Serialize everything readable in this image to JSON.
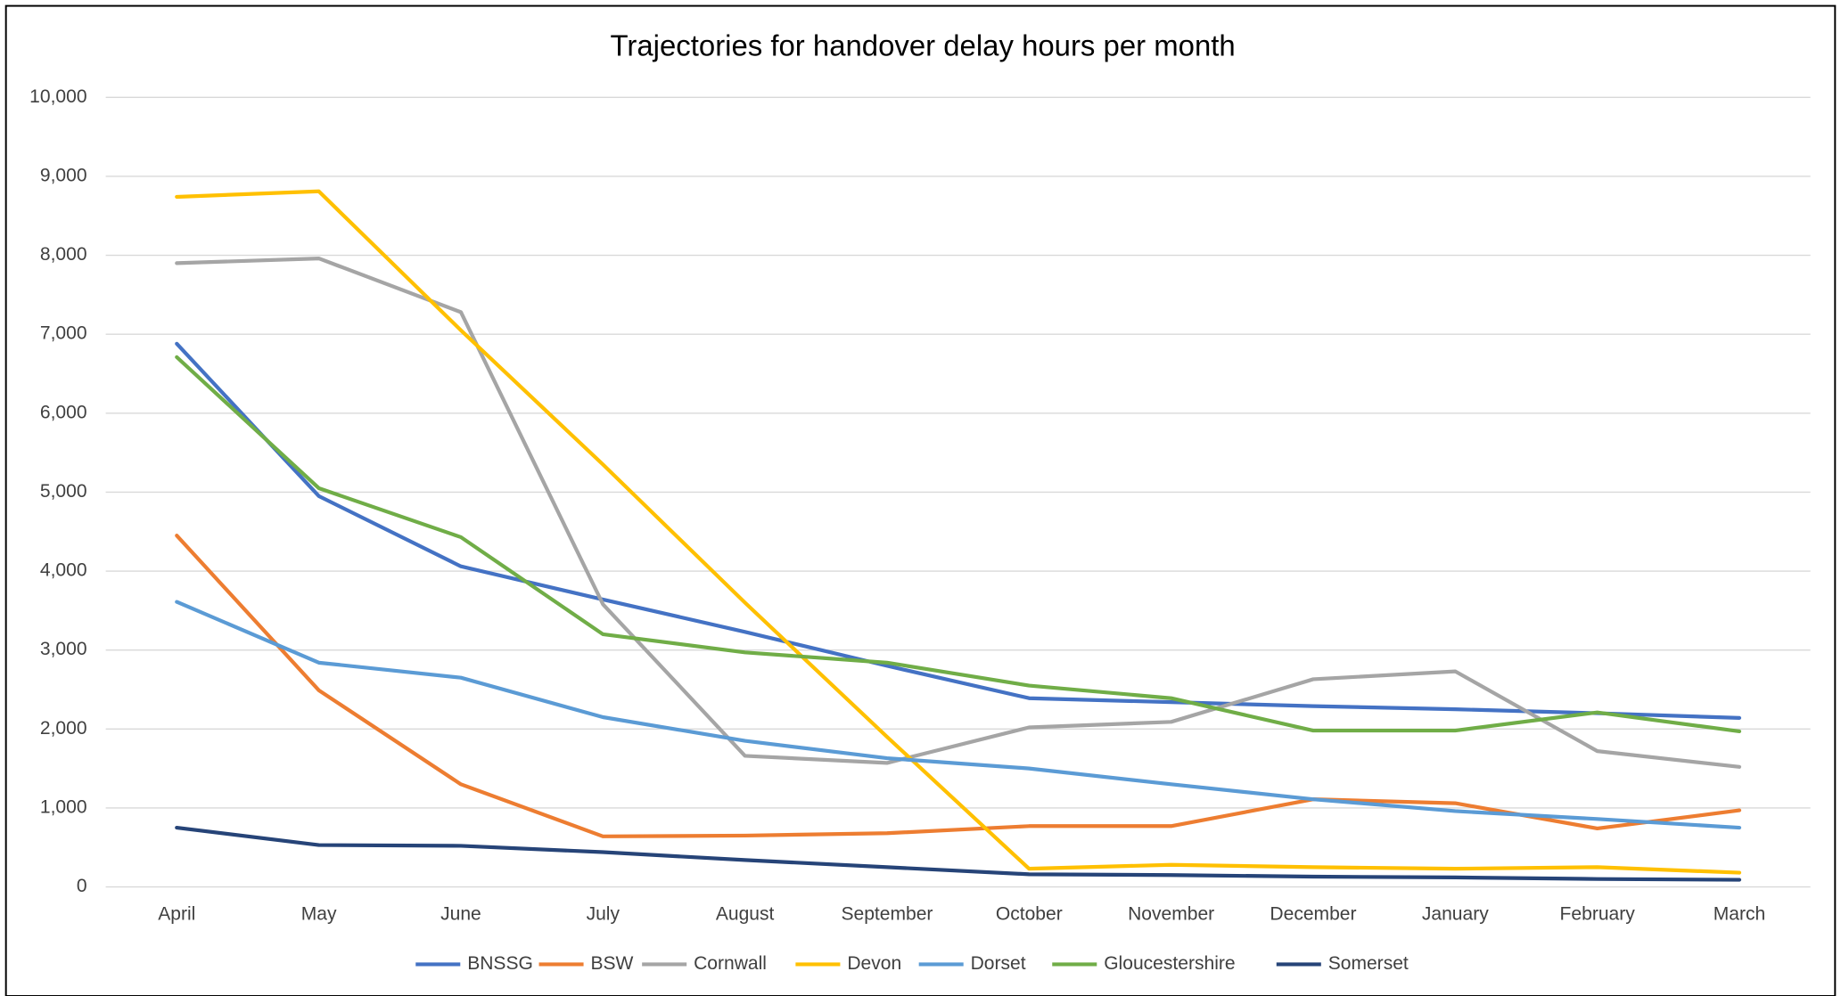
{
  "chart_data": {
    "type": "line",
    "title": "Trajectories for handover delay hours per month",
    "categories": [
      "April",
      "May",
      "June",
      "July",
      "August",
      "September",
      "October",
      "November",
      "December",
      "January",
      "February",
      "March"
    ],
    "series": [
      {
        "name": "BNSSG",
        "color": "#4472c4",
        "values": [
          6880,
          4950,
          4060,
          3640,
          3230,
          2800,
          2390,
          2340,
          2290,
          2250,
          2200,
          2140
        ]
      },
      {
        "name": "BSW",
        "color": "#ed7d31",
        "values": [
          4450,
          2490,
          1300,
          640,
          650,
          680,
          770,
          770,
          1110,
          1060,
          740,
          970
        ]
      },
      {
        "name": "Cornwall",
        "color": "#a5a5a5",
        "values": [
          7900,
          7960,
          7280,
          3580,
          1660,
          1570,
          2020,
          2090,
          2630,
          2730,
          1720,
          1520
        ]
      },
      {
        "name": "Devon",
        "color": "#ffc000",
        "values": [
          8740,
          8810,
          7050,
          5350,
          3600,
          1900,
          230,
          280,
          250,
          230,
          250,
          180
        ]
      },
      {
        "name": "Dorset",
        "color": "#5b9bd5",
        "values": [
          3610,
          2840,
          2650,
          2150,
          1850,
          1630,
          1500,
          1300,
          1110,
          960,
          860,
          750
        ]
      },
      {
        "name": "Gloucestershire",
        "color": "#70ad47",
        "values": [
          6710,
          5050,
          4430,
          3200,
          2970,
          2840,
          2550,
          2390,
          1980,
          1980,
          2210,
          1970
        ]
      },
      {
        "name": "Somerset",
        "color": "#264478",
        "values": [
          750,
          530,
          520,
          440,
          340,
          250,
          160,
          150,
          130,
          120,
          100,
          90
        ]
      }
    ],
    "ylim": [
      0,
      10000
    ],
    "yticks": [
      0,
      {
        "value": 1000,
        "label": "1,000"
      },
      {
        "value": 2000,
        "label": "2,000"
      },
      {
        "value": 3000,
        "label": "3,000"
      },
      {
        "value": 4000,
        "label": "4,000"
      },
      {
        "value": 5000,
        "label": "5,000"
      },
      {
        "value": 6000,
        "label": "6,000"
      },
      {
        "value": 7000,
        "label": "7,000"
      },
      {
        "value": 8000,
        "label": "8,000"
      },
      {
        "value": 9000,
        "label": "9,000"
      },
      {
        "value": 10000,
        "label": "10,000"
      }
    ],
    "grid": true,
    "legend": "bottom"
  }
}
